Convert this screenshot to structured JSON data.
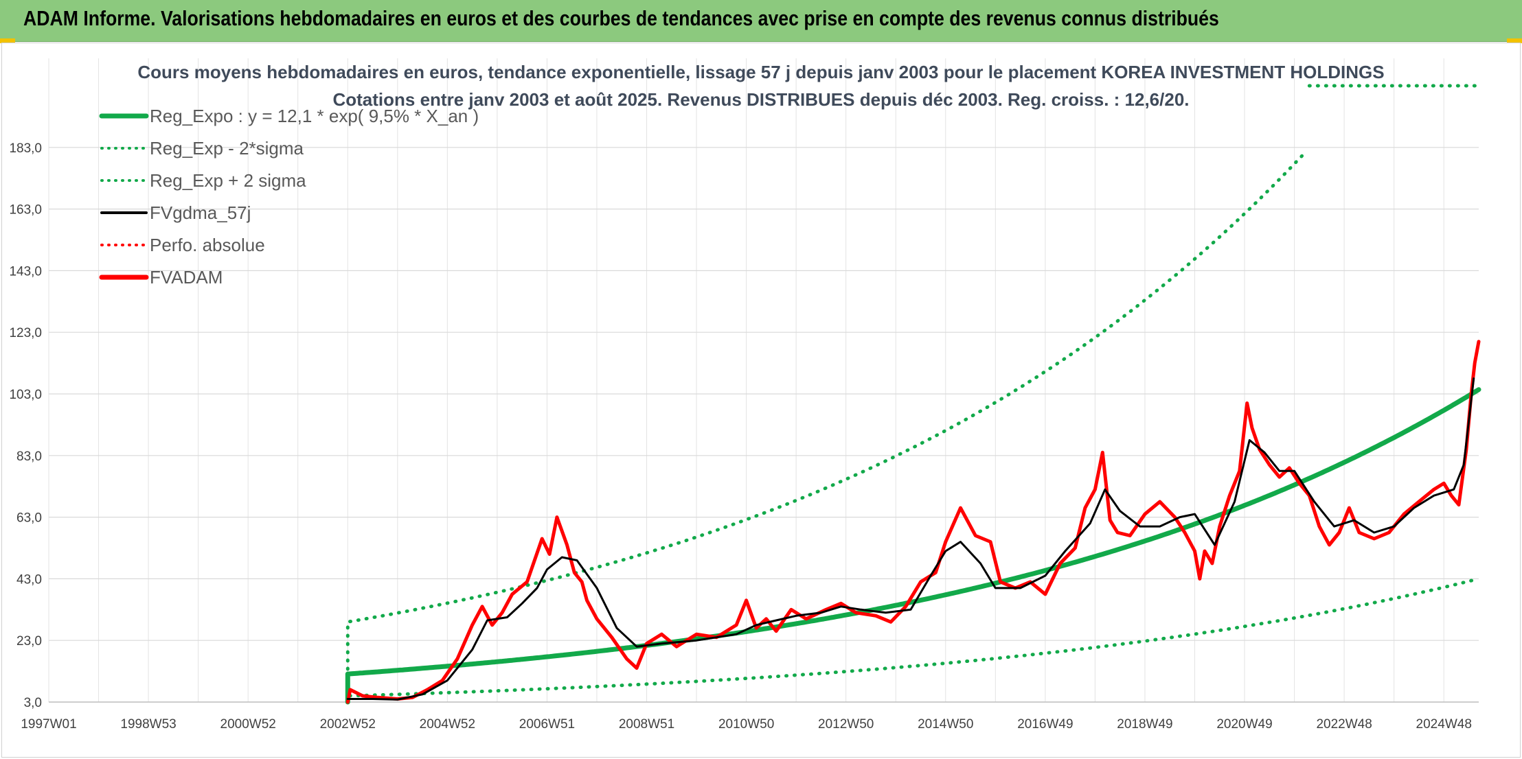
{
  "banner": {
    "title": "ADAM Informe. Valorisations hebdomadaires en euros et des courbes de tendances avec prise en compte des revenus connus distribués"
  },
  "colors": {
    "banner_bg": "#8cc97e",
    "trend_green": "#12a94a",
    "price_red": "#ff0000",
    "smooth_black": "#000000",
    "title_text": "#3f4a5a"
  },
  "chart_data": {
    "type": "line",
    "title_lines": [
      "Cours moyens hebdomadaires en euros, tendance exponentielle, lissage 57 j depuis janv 2003 pour le placement KOREA INVESTMENT HOLDINGS",
      "Cotations entre janv 2003 et août 2025. Revenus DISTRIBUES depuis déc 2003. Reg. croiss. : 12,6/20."
    ],
    "y_ticks": [
      "3,0",
      "23,0",
      "43,0",
      "63,0",
      "83,0",
      "103,0",
      "123,0",
      "143,0",
      "163,0",
      "183,0"
    ],
    "ylim": [
      3,
      203
    ],
    "x_ticks": [
      "1997W01",
      "1998W53",
      "2000W52",
      "2002W52",
      "2004W52",
      "2006W51",
      "2008W51",
      "2010W50",
      "2012W50",
      "2014W50",
      "2016W49",
      "2018W49",
      "2020W49",
      "2022W48",
      "2024W48"
    ],
    "xlim": [
      1997.0,
      2025.7
    ],
    "grid": true,
    "legend_position": "top-left",
    "legend": [
      {
        "label": "Reg_Expo : y = 12,1 * exp( 9,5% *  X_an )",
        "style": "solid-thick",
        "color": "#12a94a"
      },
      {
        "label": "Reg_Exp - 2*sigma",
        "style": "dotted",
        "color": "#12a94a"
      },
      {
        "label": "Reg_Exp + 2 sigma",
        "style": "dotted",
        "color": "#12a94a"
      },
      {
        "label": "FVgdma_57j",
        "style": "solid",
        "color": "#000000"
      },
      {
        "label": "Perfo. absolue",
        "style": "dotted",
        "color": "#ff0000"
      },
      {
        "label": "FVADAM",
        "style": "solid-thick",
        "color": "#ff0000"
      }
    ],
    "series": [
      {
        "name": "Reg_Expo : y = 12,1 * exp( 9,5% *  X_an )",
        "x": [
          2003.0,
          2005.0,
          2007.0,
          2009.0,
          2011.0,
          2013.0,
          2015.0,
          2017.0,
          2019.0,
          2021.0,
          2023.0,
          2025.7
        ],
        "values": [
          12.1,
          14.6,
          17.6,
          21.3,
          25.8,
          31.2,
          37.7,
          45.6,
          55.0,
          66.5,
          80.3,
          104.4
        ]
      },
      {
        "name": "Reg_Exp - 2*sigma",
        "x": [
          2003.0,
          2005.0,
          2007.0,
          2009.0,
          2011.0,
          2013.0,
          2015.0,
          2017.0,
          2019.0,
          2021.0,
          2023.0,
          2025.7
        ],
        "values": [
          5.0,
          6.0,
          7.3,
          8.8,
          10.6,
          12.8,
          15.5,
          18.7,
          22.6,
          27.3,
          33.0,
          43.0
        ]
      },
      {
        "name": "Reg_Exp + 2 sigma",
        "x": [
          2003.0,
          2005.0,
          2007.0,
          2009.0,
          2011.0,
          2013.0,
          2015.0,
          2017.0,
          2019.0,
          2021.0,
          2022.2,
          2022.3,
          2025.7
        ],
        "values": [
          29.0,
          35.2,
          42.6,
          51.6,
          62.4,
          75.4,
          91.3,
          110.4,
          133.6,
          161.5,
          183.0,
          203.0,
          203.0
        ]
      },
      {
        "name": "FVgdma_57j",
        "x": [
          2003.0,
          2003.5,
          2004.0,
          2004.5,
          2005.0,
          2005.5,
          2005.8,
          2006.2,
          2006.5,
          2006.8,
          2007.0,
          2007.3,
          2007.6,
          2008.0,
          2008.4,
          2008.8,
          2009.3,
          2010.0,
          2010.8,
          2011.2,
          2011.6,
          2012.0,
          2012.5,
          2012.9,
          2013.3,
          2013.8,
          2014.3,
          2014.7,
          2015.0,
          2015.3,
          2015.7,
          2016.0,
          2016.5,
          2017.0,
          2017.4,
          2017.9,
          2018.2,
          2018.5,
          2018.9,
          2019.3,
          2019.7,
          2020.0,
          2020.4,
          2020.8,
          2021.1,
          2021.4,
          2021.7,
          2022.0,
          2022.4,
          2022.8,
          2023.2,
          2023.6,
          2024.0,
          2024.4,
          2024.8,
          2025.2,
          2025.4,
          2025.6
        ],
        "values": [
          4.0,
          4.0,
          3.8,
          5.5,
          10.0,
          20.0,
          29.5,
          30.5,
          35.0,
          40.0,
          46.0,
          50.0,
          49.0,
          40.0,
          27.0,
          21.0,
          22.0,
          23.0,
          25.0,
          28.0,
          29.5,
          31.0,
          32.0,
          34.0,
          33.0,
          32.0,
          33.0,
          44.0,
          52.0,
          55.0,
          48.0,
          40.0,
          40.0,
          44.0,
          52.0,
          61.0,
          72.0,
          65.0,
          60.0,
          60.0,
          63.0,
          64.0,
          54.0,
          68.0,
          88.0,
          84.0,
          78.0,
          78.0,
          68.0,
          60.0,
          62.0,
          58.0,
          60.0,
          66.0,
          70.0,
          72.0,
          80.0,
          108.0
        ]
      },
      {
        "name": "FVADAM",
        "x": [
          2003.0,
          2003.05,
          2003.3,
          2003.6,
          2004.0,
          2004.3,
          2004.6,
          2004.9,
          2005.2,
          2005.5,
          2005.7,
          2005.9,
          2006.1,
          2006.3,
          2006.6,
          2006.9,
          2007.05,
          2007.2,
          2007.4,
          2007.55,
          2007.7,
          2007.8,
          2008.0,
          2008.3,
          2008.6,
          2008.8,
          2009.0,
          2009.3,
          2009.6,
          2010.0,
          2010.4,
          2010.8,
          2011.0,
          2011.2,
          2011.4,
          2011.6,
          2011.9,
          2012.2,
          2012.6,
          2012.9,
          2013.2,
          2013.6,
          2013.9,
          2014.2,
          2014.5,
          2014.8,
          2015.0,
          2015.3,
          2015.6,
          2015.9,
          2016.1,
          2016.4,
          2016.7,
          2017.0,
          2017.3,
          2017.6,
          2017.8,
          2018.0,
          2018.15,
          2018.3,
          2018.45,
          2018.7,
          2019.0,
          2019.3,
          2019.6,
          2019.8,
          2020.0,
          2020.1,
          2020.2,
          2020.35,
          2020.5,
          2020.7,
          2020.9,
          2021.05,
          2021.15,
          2021.3,
          2021.5,
          2021.7,
          2021.9,
          2022.1,
          2022.3,
          2022.5,
          2022.7,
          2022.9,
          2023.1,
          2023.3,
          2023.6,
          2023.9,
          2024.2,
          2024.5,
          2024.8,
          2025.0,
          2025.15,
          2025.3,
          2025.45,
          2025.55,
          2025.62,
          2025.7
        ],
        "values": [
          3.0,
          7.0,
          5.0,
          4.5,
          4.0,
          4.5,
          7.0,
          10.0,
          17.0,
          28.0,
          34.0,
          28.0,
          32.0,
          38.0,
          42.0,
          56.0,
          51.0,
          63.0,
          54.0,
          45.0,
          42.0,
          36.0,
          30.0,
          24.0,
          17.0,
          14.0,
          22.0,
          25.0,
          21.0,
          25.0,
          24.0,
          28.0,
          36.0,
          27.0,
          30.0,
          26.0,
          33.0,
          30.0,
          33.0,
          35.0,
          32.0,
          31.0,
          29.0,
          34.0,
          42.0,
          45.0,
          55.0,
          66.0,
          57.0,
          55.0,
          42.0,
          40.0,
          42.0,
          38.0,
          48.0,
          53.0,
          66.0,
          72.0,
          84.0,
          62.0,
          58.0,
          57.0,
          64.0,
          68.0,
          63.0,
          58.0,
          52.0,
          43.0,
          52.0,
          48.0,
          60.0,
          70.0,
          78.0,
          100.0,
          92.0,
          85.0,
          80.0,
          76.0,
          79.0,
          74.0,
          70.0,
          60.0,
          54.0,
          58.0,
          66.0,
          58.0,
          56.0,
          58.0,
          64.0,
          68.0,
          72.0,
          74.0,
          70.0,
          67.0,
          85.0,
          103.0,
          113.0,
          120.0
        ]
      }
    ]
  }
}
